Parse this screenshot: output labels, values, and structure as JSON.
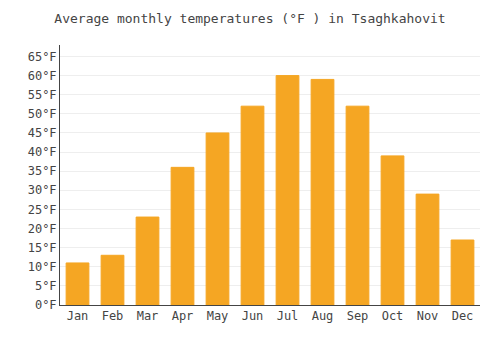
{
  "chart_data": {
    "type": "bar",
    "title": "Average monthly temperatures (°F ) in Tsaghkahovit",
    "categories": [
      "Jan",
      "Feb",
      "Mar",
      "Apr",
      "May",
      "Jun",
      "Jul",
      "Aug",
      "Sep",
      "Oct",
      "Nov",
      "Dec"
    ],
    "values": [
      11,
      13,
      23,
      36,
      45,
      52,
      60,
      59,
      52,
      39,
      29,
      17
    ],
    "color": "#F5A623",
    "ylim": [
      0,
      68
    ],
    "yticks": [
      {
        "value": 0,
        "label": "0°F"
      },
      {
        "value": 5,
        "label": "5°F"
      },
      {
        "value": 10,
        "label": "10°F"
      },
      {
        "value": 15,
        "label": "15°F"
      },
      {
        "value": 20,
        "label": "20°F"
      },
      {
        "value": 25,
        "label": "25°F"
      },
      {
        "value": 30,
        "label": "30°F"
      },
      {
        "value": 35,
        "label": "35°F"
      },
      {
        "value": 40,
        "label": "40°F"
      },
      {
        "value": 45,
        "label": "45°F"
      },
      {
        "value": 50,
        "label": "50°F"
      },
      {
        "value": 55,
        "label": "55°F"
      },
      {
        "value": 60,
        "label": "60°F"
      },
      {
        "value": 65,
        "label": "65°F"
      }
    ],
    "grid": true
  }
}
